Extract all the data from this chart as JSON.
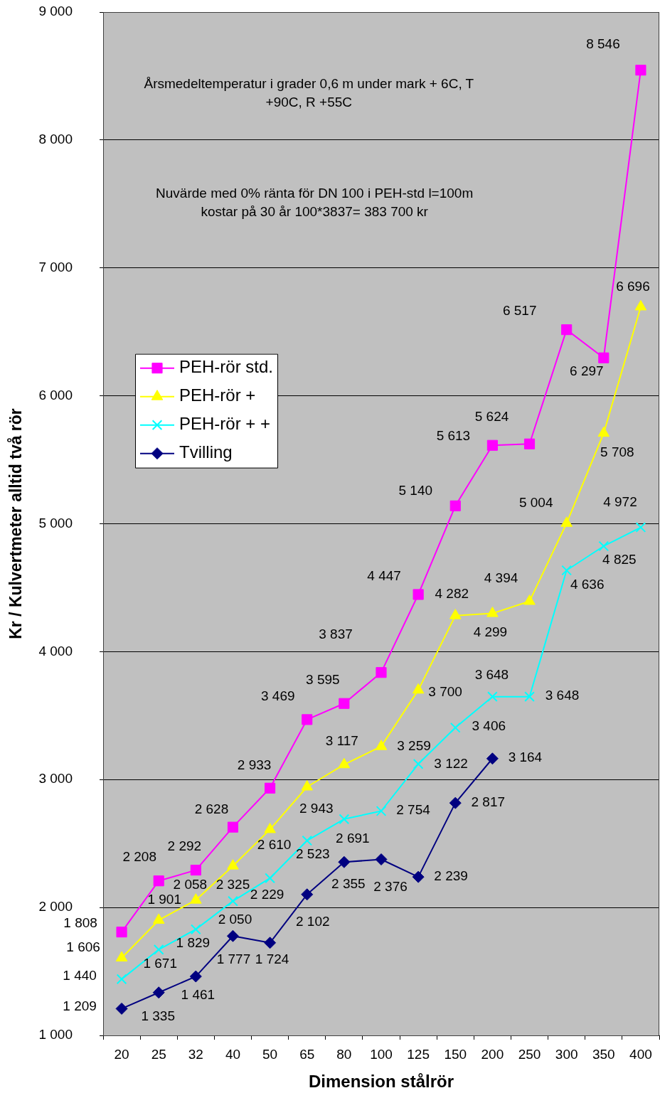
{
  "chart_data": {
    "type": "line",
    "xlabel": "Dimension stålrör",
    "ylabel": "Kr / Kulvertmeter alltid två rör",
    "annotations": [
      "Årsmedeltemperatur i grader 0,6 m under mark + 6C, T +90C, R +55C",
      "Nuvärde med 0% ränta för DN 100 i PEH-std l=100m kostar på 30 år 100*3837= 383 700 kr"
    ],
    "categories": [
      "20",
      "25",
      "32",
      "40",
      "50",
      "65",
      "80",
      "100",
      "125",
      "150",
      "200",
      "250",
      "300",
      "350",
      "400"
    ],
    "ylim": [
      1000,
      9000
    ],
    "yticks": [
      {
        "value": 1000,
        "label": "1 000"
      },
      {
        "value": 2000,
        "label": "2 000"
      },
      {
        "value": 3000,
        "label": "3 000"
      },
      {
        "value": 4000,
        "label": "4 000"
      },
      {
        "value": 5000,
        "label": "5 000"
      },
      {
        "value": 6000,
        "label": "6 000"
      },
      {
        "value": 7000,
        "label": "7 000"
      },
      {
        "value": 8000,
        "label": "8 000"
      },
      {
        "value": 9000,
        "label": "9 000"
      }
    ],
    "grid": "y",
    "legend": "left",
    "series": [
      {
        "name": "PEH-rör std.",
        "color": "#ff00ff",
        "marker": "square",
        "values": [
          1808,
          2208,
          2292,
          2628,
          2933,
          3469,
          3595,
          3837,
          4447,
          5140,
          5613,
          5624,
          6517,
          6297,
          8546
        ],
        "value_labels": [
          "1 808",
          "2 208",
          "2 292",
          "2 628",
          "2 933",
          "3 469",
          "3 595",
          "3 837",
          "4 447",
          "5 140",
          "5 613",
          "5 624",
          "6 517",
          "6 297",
          "8 546"
        ]
      },
      {
        "name": "PEH-rör +",
        "color": "#ffff00",
        "marker": "triangle",
        "values": [
          1606,
          1901,
          2058,
          2325,
          2610,
          2943,
          3117,
          3259,
          3700,
          4282,
          4299,
          4394,
          5004,
          5708,
          6696
        ],
        "value_labels": [
          "1 606",
          "1 901",
          "2 058",
          "2 325",
          "2 610",
          "2 943",
          "3 117",
          "3 259",
          "3 700",
          "4 282",
          "4 299",
          "4 394",
          "5 004",
          "5 708",
          "6 696"
        ]
      },
      {
        "name": "PEH-rör + +",
        "color": "#00ffff",
        "marker": "cross",
        "values": [
          1440,
          1671,
          1829,
          2050,
          2229,
          2523,
          2691,
          2754,
          3122,
          3406,
          3648,
          3648,
          4636,
          4825,
          4972
        ],
        "value_labels": [
          "1 440",
          "1 671",
          "1 829",
          "2 050",
          "2 229",
          "2 523",
          "2 691",
          "2 754",
          "3 122",
          "3 406",
          "3 648",
          "3 648",
          "4 636",
          "4 825",
          "4 972"
        ]
      },
      {
        "name": "Tvilling",
        "color": "#000080",
        "marker": "diamond",
        "values": [
          1209,
          1335,
          1461,
          1777,
          1724,
          2102,
          2355,
          2376,
          2239,
          2817,
          3164,
          null,
          null,
          null,
          null
        ],
        "value_labels": [
          "1 209",
          "1 335",
          "1 461",
          "1 777",
          "1 724",
          "2 102",
          "2 355",
          "2 376",
          "2 239",
          "2 817",
          "3 164",
          null,
          null,
          null,
          null
        ]
      }
    ]
  }
}
